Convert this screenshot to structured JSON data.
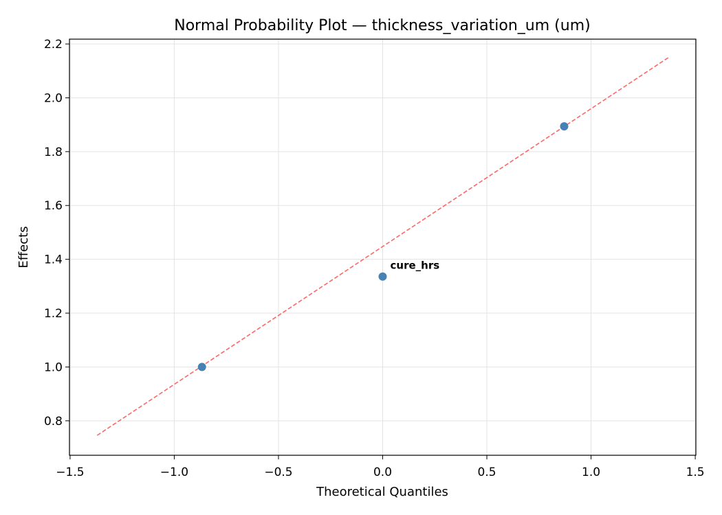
{
  "chart_data": {
    "type": "scatter",
    "title": "Normal Probability Plot — thickness_variation_um (um)",
    "x_label": "Theoretical Quantiles",
    "y_label": "Effects",
    "x": [
      -0.867,
      0,
      0.871
    ],
    "y": [
      1.0,
      1.336,
      1.894
    ],
    "color": "#4682b4",
    "reference_line": {
      "x": [
        -1.37,
        1.37
      ],
      "y": [
        0.746,
        2.149
      ],
      "color": "#ff6666"
    },
    "annotations": [
      {
        "text": "cure_hrs",
        "x": 0,
        "y": 1.336,
        "color": "#ff0000"
      }
    ],
    "xlim": [
      -1.503,
      1.503
    ],
    "ylim": [
      0.672,
      2.218
    ],
    "xticks": [
      {
        "value": -1.5,
        "label": "−1.5"
      },
      {
        "value": -1,
        "label": "−1.0"
      },
      {
        "value": -0.5,
        "label": "−0.5"
      },
      {
        "value": 0,
        "label": "0.0"
      },
      0.5,
      {
        "value": 1,
        "label": "1.0"
      },
      1.5
    ],
    "yticks": [
      0.8,
      {
        "value": 1,
        "label": "1.0"
      },
      1.2,
      1.4,
      1.6,
      1.8,
      {
        "value": 2,
        "label": "2.0"
      },
      2.2
    ],
    "grid": true
  }
}
